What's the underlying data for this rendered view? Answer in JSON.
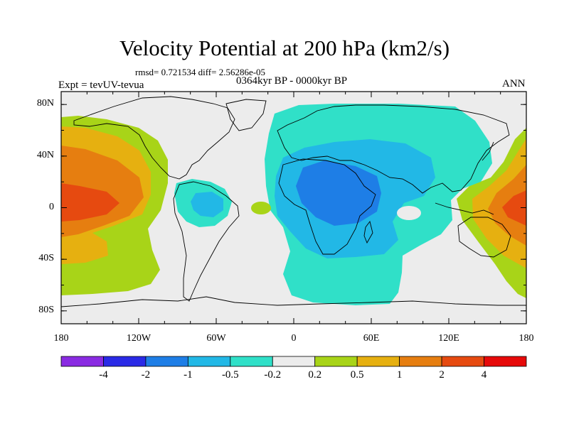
{
  "title": "Velocity Potential at 200 hPa (km2/s)",
  "stats": "rmsd= 0.721534 diff= 2.56286e-05",
  "experiment": "Expt = tevUV-tevua",
  "period": "0364kyr BP - 0000kyr BP",
  "season": "ANN",
  "lat_ticks": [
    {
      "label": "80N",
      "lat": 80
    },
    {
      "label": "40N",
      "lat": 40
    },
    {
      "label": "0",
      "lat": 0
    },
    {
      "label": "40S",
      "lat": -40
    },
    {
      "label": "80S",
      "lat": -80
    }
  ],
  "lon_ticks": [
    {
      "label": "180",
      "lon": -180
    },
    {
      "label": "120W",
      "lon": -120
    },
    {
      "label": "60W",
      "lon": -60
    },
    {
      "label": "0",
      "lon": 0
    },
    {
      "label": "60E",
      "lon": 60
    },
    {
      "label": "120E",
      "lon": 120
    },
    {
      "label": "180",
      "lon": 180
    }
  ],
  "colorbar": {
    "colors": [
      "#8a2be2",
      "#2a2ae6",
      "#1e7ee6",
      "#22b8e6",
      "#30e0c8",
      "#ececec",
      "#a8d418",
      "#e6b010",
      "#e67e10",
      "#e64a10",
      "#e60a0a"
    ],
    "labels": [
      "-4",
      "-2",
      "-1",
      "-0.5",
      "-0.2",
      "0.2",
      "0.5",
      "1",
      "2",
      "4"
    ]
  }
}
